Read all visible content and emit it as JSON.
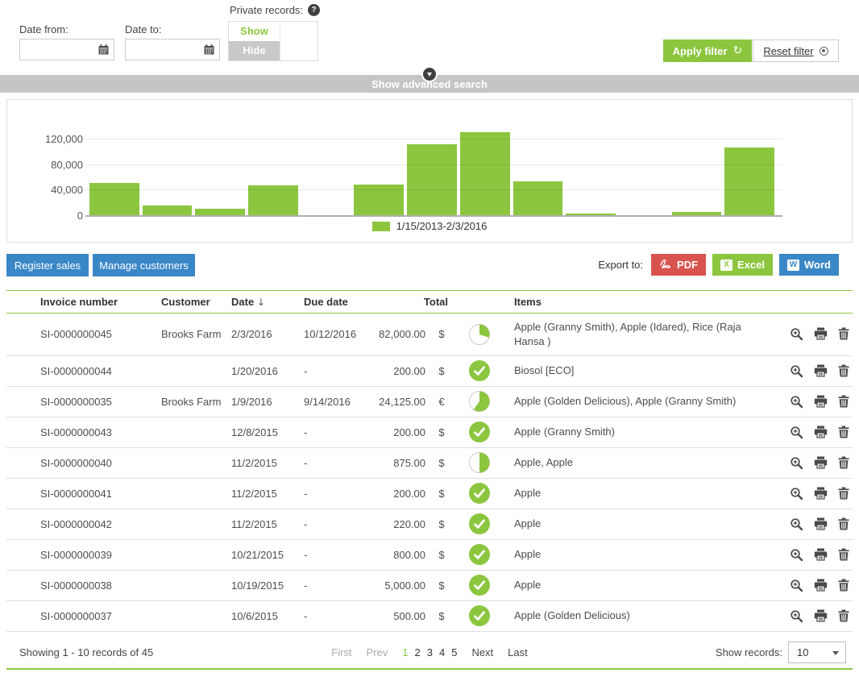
{
  "filter": {
    "date_from_label": "Date from:",
    "date_to_label": "Date to:",
    "date_from_value": "",
    "date_to_value": "",
    "private_records_label": "Private records:",
    "show_label": "Show",
    "hide_label": "Hide",
    "apply_label": "Apply filter",
    "reset_label": "Reset filter",
    "advanced_search_label": "Show advanced search"
  },
  "chart_data": {
    "type": "bar",
    "legend": "1/15/2013-2/3/2016",
    "bar_color": "#8cc63f",
    "ylim": [
      0,
      140000
    ],
    "yticks": [
      0,
      40000,
      80000,
      120000
    ],
    "ytick_labels": [
      "0",
      "40,000",
      "80,000",
      "120,000"
    ],
    "values": [
      52000,
      17000,
      11500,
      47500,
      400,
      49500,
      112000,
      131000,
      54500,
      4000,
      1200,
      6500,
      107500
    ],
    "grid": true,
    "legend_position": "bottom"
  },
  "toolbar": {
    "register_sales_label": "Register sales",
    "manage_customers_label": "Manage customers",
    "export_label": "Export to:",
    "pdf_label": "PDF",
    "excel_label": "Excel",
    "word_label": "Word"
  },
  "table": {
    "headers": {
      "invoice": "Invoice number",
      "customer": "Customer",
      "date": "Date",
      "due": "Due date",
      "total": "Total",
      "items": "Items"
    },
    "rows": [
      {
        "invoice": "SI-0000000045",
        "customer": "Brooks Farm",
        "date": "2/3/2016",
        "due": "10/12/2016",
        "total": "82,000.00",
        "currency": "$",
        "status": "pie-30",
        "items": "Apple (Granny Smith), Apple (Idared), Rice (Raja Hansa )"
      },
      {
        "invoice": "SI-0000000044",
        "customer": "",
        "date": "1/20/2016",
        "due": "-",
        "total": "200.00",
        "currency": "$",
        "status": "paid",
        "items": "Biosol [ECO]"
      },
      {
        "invoice": "SI-0000000035",
        "customer": "Brooks Farm",
        "date": "1/9/2016",
        "due": "9/14/2016",
        "total": "24,125.00",
        "currency": "€",
        "status": "pie-60",
        "items": "Apple (Golden Delicious), Apple (Granny Smith)"
      },
      {
        "invoice": "SI-0000000043",
        "customer": "",
        "date": "12/8/2015",
        "due": "-",
        "total": "200.00",
        "currency": "$",
        "status": "paid",
        "items": "Apple (Granny Smith)"
      },
      {
        "invoice": "SI-0000000040",
        "customer": "",
        "date": "11/2/2015",
        "due": "-",
        "total": "875.00",
        "currency": "$",
        "status": "pie-50",
        "items": "Apple, Apple"
      },
      {
        "invoice": "SI-0000000041",
        "customer": "",
        "date": "11/2/2015",
        "due": "-",
        "total": "200.00",
        "currency": "$",
        "status": "paid",
        "items": "Apple"
      },
      {
        "invoice": "SI-0000000042",
        "customer": "",
        "date": "11/2/2015",
        "due": "-",
        "total": "220.00",
        "currency": "$",
        "status": "paid",
        "items": "Apple"
      },
      {
        "invoice": "SI-0000000039",
        "customer": "",
        "date": "10/21/2015",
        "due": "-",
        "total": "800.00",
        "currency": "$",
        "status": "paid",
        "items": "Apple"
      },
      {
        "invoice": "SI-0000000038",
        "customer": "",
        "date": "10/19/2015",
        "due": "-",
        "total": "5,000.00",
        "currency": "$",
        "status": "paid",
        "items": "Apple"
      },
      {
        "invoice": "SI-0000000037",
        "customer": "",
        "date": "10/6/2015",
        "due": "-",
        "total": "500.00",
        "currency": "$",
        "status": "paid",
        "items": "Apple (Golden Delicious)"
      }
    ]
  },
  "footer": {
    "showing_text": "Showing 1 - 10 records of 45",
    "first_label": "First",
    "prev_label": "Prev",
    "pages": [
      "1",
      "2",
      "3",
      "4",
      "5"
    ],
    "active_page": "1",
    "next_label": "Next",
    "last_label": "Last",
    "show_records_label": "Show records:",
    "show_records_value": "10"
  },
  "colors": {
    "accent_green": "#8cc63f",
    "button_blue": "#3a87c8",
    "pdf_red": "#d9534f",
    "bar_gray": "#c5c5c5"
  }
}
